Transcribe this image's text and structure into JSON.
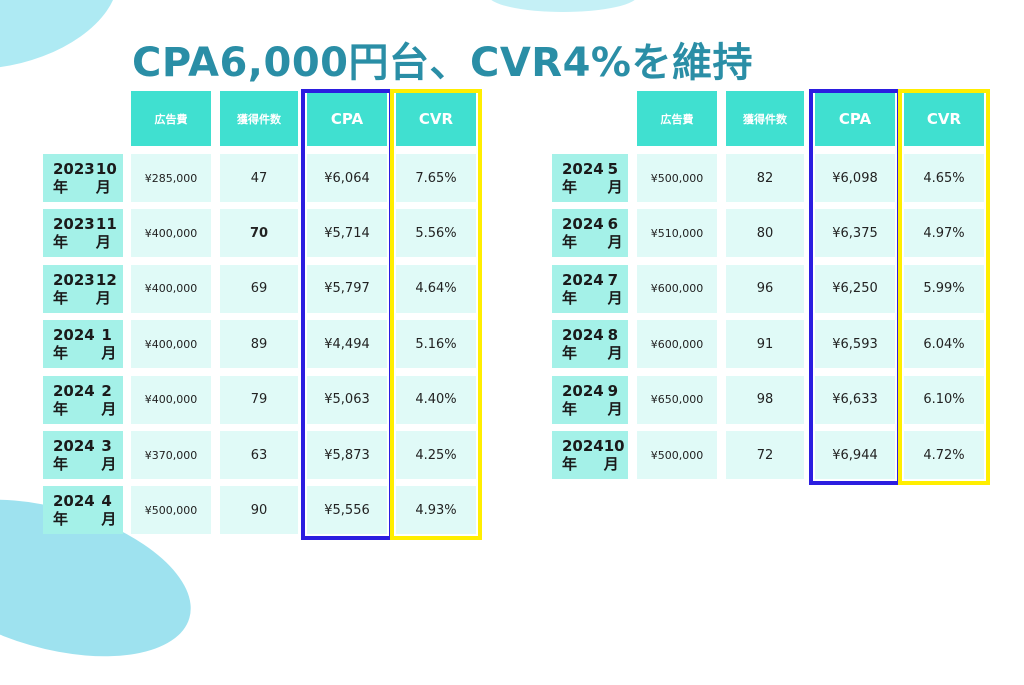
{
  "title": "CPA6,000円台、CVR4%を維持",
  "headers": [
    "広告費",
    "獲得件数",
    "CPA",
    "CVR"
  ],
  "colors": {
    "title": "#2a8ea6",
    "header": "#40e0d0",
    "row_label": "#a4f1e8",
    "cell": "#e0faf7",
    "cpa_frame": "#2b1de0",
    "cvr_frame": "#ffee00"
  },
  "left_table": [
    {
      "year": "2023年",
      "month": "10月",
      "cost": "¥285,000",
      "count": "47",
      "cpa": "¥6,064",
      "cvr": "7.65%"
    },
    {
      "year": "2023年",
      "month": "11月",
      "cost": "¥400,000",
      "count": "70",
      "cpa": "¥5,714",
      "cvr": "5.56%"
    },
    {
      "year": "2023年",
      "month": "12月",
      "cost": "¥400,000",
      "count": "69",
      "cpa": "¥5,797",
      "cvr": "4.64%"
    },
    {
      "year": "2024年",
      "month": "1月",
      "cost": "¥400,000",
      "count": "89",
      "cpa": "¥4,494",
      "cvr": "5.16%"
    },
    {
      "year": "2024年",
      "month": "2月",
      "cost": "¥400,000",
      "count": "79",
      "cpa": "¥5,063",
      "cvr": "4.40%"
    },
    {
      "year": "2024年",
      "month": "3月",
      "cost": "¥370,000",
      "count": "63",
      "cpa": "¥5,873",
      "cvr": "4.25%"
    },
    {
      "year": "2024年",
      "month": "4月",
      "cost": "¥500,000",
      "count": "90",
      "cpa": "¥5,556",
      "cvr": "4.93%"
    }
  ],
  "right_table": [
    {
      "year": "2024年",
      "month": "5月",
      "cost": "¥500,000",
      "count": "82",
      "cpa": "¥6,098",
      "cvr": "4.65%"
    },
    {
      "year": "2024年",
      "month": "6月",
      "cost": "¥510,000",
      "count": "80",
      "cpa": "¥6,375",
      "cvr": "4.97%"
    },
    {
      "year": "2024年",
      "month": "7月",
      "cost": "¥600,000",
      "count": "96",
      "cpa": "¥6,250",
      "cvr": "5.99%"
    },
    {
      "year": "2024年",
      "month": "8月",
      "cost": "¥600,000",
      "count": "91",
      "cpa": "¥6,593",
      "cvr": "6.04%"
    },
    {
      "year": "2024年",
      "month": "9月",
      "cost": "¥650,000",
      "count": "98",
      "cpa": "¥6,633",
      "cvr": "6.10%"
    },
    {
      "year": "2024年",
      "month": "10月",
      "cost": "¥500,000",
      "count": "72",
      "cpa": "¥6,944",
      "cvr": "4.72%"
    }
  ]
}
